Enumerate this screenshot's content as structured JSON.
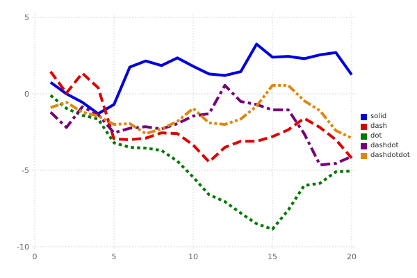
{
  "chart_data": {
    "type": "line",
    "title": "",
    "xlabel": "",
    "ylabel": "",
    "x": [
      1,
      2,
      3,
      4,
      5,
      6,
      7,
      8,
      9,
      10,
      11,
      12,
      13,
      14,
      15,
      16,
      17,
      18,
      19,
      20
    ],
    "series": [
      {
        "name": "solid",
        "color": "#0000dd",
        "dash_style": "solid",
        "values": [
          0.75,
          0.0,
          -0.55,
          -1.3,
          -0.7,
          1.75,
          2.15,
          1.85,
          2.35,
          1.8,
          1.3,
          1.2,
          1.45,
          3.25,
          2.4,
          2.45,
          2.3,
          2.55,
          2.7,
          1.25
        ]
      },
      {
        "name": "dash",
        "color": "#dd0000",
        "dash_style": "dash",
        "values": [
          1.45,
          0.05,
          1.35,
          0.4,
          -2.95,
          -3.0,
          -2.9,
          -2.55,
          -2.6,
          -3.35,
          -4.45,
          -3.5,
          -3.1,
          -3.1,
          -2.8,
          -2.35,
          -1.6,
          -2.2,
          -3.0,
          -4.2
        ]
      },
      {
        "name": "dot",
        "color": "#007700",
        "dash_style": "dot",
        "values": [
          -0.1,
          -0.95,
          -1.4,
          -1.65,
          -3.2,
          -3.5,
          -3.55,
          -3.7,
          -4.4,
          -5.45,
          -6.6,
          -7.05,
          -7.8,
          -8.5,
          -8.85,
          -7.6,
          -6.0,
          -5.85,
          -5.1,
          -5.05
        ]
      },
      {
        "name": "dashdot",
        "color": "#770077",
        "dash_style": "dashdot",
        "values": [
          -1.2,
          -2.2,
          -0.85,
          -1.35,
          -2.55,
          -2.25,
          -2.15,
          -2.3,
          -1.95,
          -1.45,
          -1.3,
          0.55,
          -0.5,
          -0.7,
          -1.05,
          -1.05,
          -2.6,
          -4.65,
          -4.55,
          -4.1
        ]
      },
      {
        "name": "dashdotdot",
        "color": "#dd8811",
        "dash_style": "dashdotdot",
        "values": [
          -0.9,
          -0.55,
          -1.2,
          -1.45,
          -2.0,
          -1.95,
          -2.6,
          -2.3,
          -1.8,
          -0.95,
          -1.9,
          -2.0,
          -1.65,
          -0.8,
          0.55,
          0.55,
          -0.45,
          -1.1,
          -2.4,
          -2.9
        ]
      }
    ],
    "xlim": [
      0,
      20
    ],
    "ylim": [
      -10,
      5
    ],
    "x_ticks": [
      0,
      5,
      10,
      15,
      20
    ],
    "y_ticks": [
      5,
      0,
      -5,
      -10
    ],
    "grid": true,
    "grid_color": "#c9c9da",
    "legend_position": "right",
    "legend_labels": [
      "solid",
      "dash",
      "dot",
      "dashdot",
      "dashdotdot"
    ]
  }
}
